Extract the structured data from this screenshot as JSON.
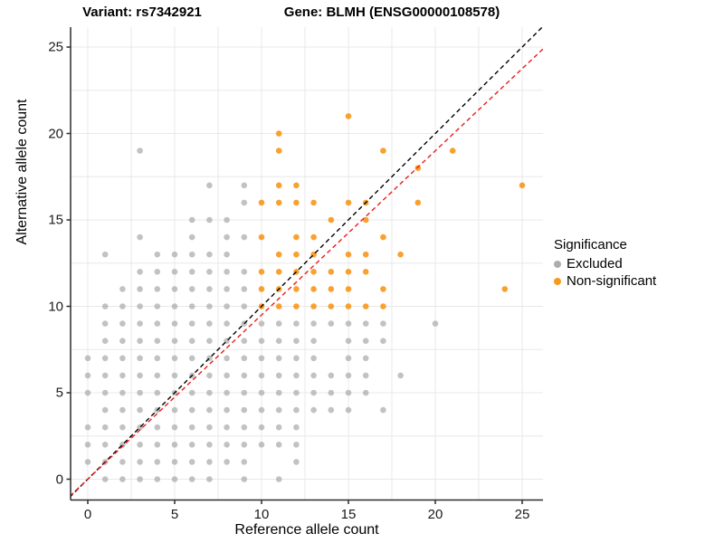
{
  "titles": {
    "variant": "Variant: rs7342921",
    "gene": "Gene: BLMH (ENSG00000108578)"
  },
  "legend": {
    "title": "Significance",
    "items": [
      {
        "label": "Excluded",
        "color": "#ADADAD"
      },
      {
        "label": "Non-significant",
        "color": "#F8991D"
      }
    ]
  },
  "chart_data": {
    "type": "scatter",
    "title": "Variant: rs7342921 | Gene: BLMH (ENSG00000108578)",
    "xlabel": "Reference allele count",
    "ylabel": "Alternative allele count",
    "xlim": [
      -1,
      26.2
    ],
    "ylim": [
      -1.2,
      26.2
    ],
    "x_ticks": [
      0,
      5,
      10,
      15,
      20,
      25
    ],
    "y_ticks": [
      0,
      5,
      10,
      15,
      20,
      25
    ],
    "grid": "on",
    "grid_interval": 2.5,
    "legend_position": "right",
    "grid_color": "#E8E8E8",
    "axis_color": "#2b2b2b",
    "lines": [
      {
        "name": "identity",
        "slope": 1,
        "intercept": 0,
        "color": "#000000",
        "style": "dashed"
      },
      {
        "name": "fit",
        "slope": 0.95,
        "intercept": 0,
        "color": "#EC1C1C",
        "style": "dashed"
      }
    ],
    "series": [
      {
        "name": "Excluded",
        "color": "#ADADAD",
        "opacity": 0.75,
        "points": [
          [
            1,
            0
          ],
          [
            2,
            0
          ],
          [
            3,
            0
          ],
          [
            4,
            0
          ],
          [
            5,
            0
          ],
          [
            6,
            0
          ],
          [
            7,
            0
          ],
          [
            9,
            0
          ],
          [
            11,
            0
          ],
          [
            0,
            1
          ],
          [
            1,
            1
          ],
          [
            2,
            1
          ],
          [
            3,
            1
          ],
          [
            4,
            1
          ],
          [
            5,
            1
          ],
          [
            6,
            1
          ],
          [
            7,
            1
          ],
          [
            8,
            1
          ],
          [
            9,
            1
          ],
          [
            12,
            1
          ],
          [
            0,
            2
          ],
          [
            1,
            2
          ],
          [
            2,
            2
          ],
          [
            3,
            2
          ],
          [
            4,
            2
          ],
          [
            5,
            2
          ],
          [
            6,
            2
          ],
          [
            7,
            2
          ],
          [
            8,
            2
          ],
          [
            9,
            2
          ],
          [
            10,
            2
          ],
          [
            11,
            2
          ],
          [
            12,
            2
          ],
          [
            0,
            3
          ],
          [
            1,
            3
          ],
          [
            2,
            3
          ],
          [
            3,
            3
          ],
          [
            4,
            3
          ],
          [
            5,
            3
          ],
          [
            6,
            3
          ],
          [
            7,
            3
          ],
          [
            8,
            3
          ],
          [
            9,
            3
          ],
          [
            10,
            3
          ],
          [
            11,
            3
          ],
          [
            12,
            3
          ],
          [
            1,
            4
          ],
          [
            2,
            4
          ],
          [
            3,
            4
          ],
          [
            4,
            4
          ],
          [
            5,
            4
          ],
          [
            6,
            4
          ],
          [
            7,
            4
          ],
          [
            8,
            4
          ],
          [
            9,
            4
          ],
          [
            10,
            4
          ],
          [
            11,
            4
          ],
          [
            12,
            4
          ],
          [
            13,
            4
          ],
          [
            14,
            4
          ],
          [
            15,
            4
          ],
          [
            17,
            4
          ],
          [
            0,
            5
          ],
          [
            1,
            5
          ],
          [
            2,
            5
          ],
          [
            3,
            5
          ],
          [
            4,
            5
          ],
          [
            5,
            5
          ],
          [
            6,
            5
          ],
          [
            7,
            5
          ],
          [
            8,
            5
          ],
          [
            9,
            5
          ],
          [
            10,
            5
          ],
          [
            11,
            5
          ],
          [
            12,
            5
          ],
          [
            13,
            5
          ],
          [
            14,
            5
          ],
          [
            15,
            5
          ],
          [
            16,
            5
          ],
          [
            0,
            6
          ],
          [
            1,
            6
          ],
          [
            2,
            6
          ],
          [
            3,
            6
          ],
          [
            4,
            6
          ],
          [
            5,
            6
          ],
          [
            6,
            6
          ],
          [
            7,
            6
          ],
          [
            8,
            6
          ],
          [
            9,
            6
          ],
          [
            10,
            6
          ],
          [
            11,
            6
          ],
          [
            12,
            6
          ],
          [
            13,
            6
          ],
          [
            14,
            6
          ],
          [
            15,
            6
          ],
          [
            16,
            6
          ],
          [
            18,
            6
          ],
          [
            0,
            7
          ],
          [
            1,
            7
          ],
          [
            2,
            7
          ],
          [
            3,
            7
          ],
          [
            4,
            7
          ],
          [
            5,
            7
          ],
          [
            6,
            7
          ],
          [
            7,
            7
          ],
          [
            8,
            7
          ],
          [
            9,
            7
          ],
          [
            10,
            7
          ],
          [
            11,
            7
          ],
          [
            12,
            7
          ],
          [
            13,
            7
          ],
          [
            15,
            7
          ],
          [
            16,
            7
          ],
          [
            1,
            8
          ],
          [
            2,
            8
          ],
          [
            3,
            8
          ],
          [
            4,
            8
          ],
          [
            5,
            8
          ],
          [
            6,
            8
          ],
          [
            7,
            8
          ],
          [
            8,
            8
          ],
          [
            9,
            8
          ],
          [
            10,
            8
          ],
          [
            11,
            8
          ],
          [
            12,
            8
          ],
          [
            13,
            8
          ],
          [
            15,
            8
          ],
          [
            16,
            8
          ],
          [
            17,
            8
          ],
          [
            1,
            9
          ],
          [
            2,
            9
          ],
          [
            3,
            9
          ],
          [
            4,
            9
          ],
          [
            5,
            9
          ],
          [
            6,
            9
          ],
          [
            7,
            9
          ],
          [
            8,
            9
          ],
          [
            9,
            9
          ],
          [
            10,
            9
          ],
          [
            11,
            9
          ],
          [
            12,
            9
          ],
          [
            13,
            9
          ],
          [
            14,
            9
          ],
          [
            15,
            9
          ],
          [
            16,
            9
          ],
          [
            17,
            9
          ],
          [
            20,
            9
          ],
          [
            1,
            10
          ],
          [
            2,
            10
          ],
          [
            3,
            10
          ],
          [
            4,
            10
          ],
          [
            5,
            10
          ],
          [
            6,
            10
          ],
          [
            7,
            10
          ],
          [
            8,
            10
          ],
          [
            9,
            10
          ],
          [
            2,
            11
          ],
          [
            3,
            11
          ],
          [
            4,
            11
          ],
          [
            5,
            11
          ],
          [
            6,
            11
          ],
          [
            7,
            11
          ],
          [
            8,
            11
          ],
          [
            9,
            11
          ],
          [
            3,
            12
          ],
          [
            4,
            12
          ],
          [
            5,
            12
          ],
          [
            6,
            12
          ],
          [
            7,
            12
          ],
          [
            8,
            12
          ],
          [
            9,
            12
          ],
          [
            1,
            13
          ],
          [
            4,
            13
          ],
          [
            5,
            13
          ],
          [
            6,
            13
          ],
          [
            7,
            13
          ],
          [
            8,
            13
          ],
          [
            3,
            14
          ],
          [
            6,
            14
          ],
          [
            8,
            14
          ],
          [
            9,
            14
          ],
          [
            6,
            15
          ],
          [
            7,
            15
          ],
          [
            8,
            15
          ],
          [
            9,
            16
          ],
          [
            7,
            17
          ],
          [
            9,
            17
          ],
          [
            3,
            19
          ]
        ]
      },
      {
        "name": "Non-significant",
        "color": "#F8991D",
        "opacity": 0.92,
        "points": [
          [
            10,
            10
          ],
          [
            11,
            10
          ],
          [
            12,
            10
          ],
          [
            13,
            10
          ],
          [
            14,
            10
          ],
          [
            15,
            10
          ],
          [
            16,
            10
          ],
          [
            17,
            10
          ],
          [
            10,
            11
          ],
          [
            11,
            11
          ],
          [
            12,
            11
          ],
          [
            13,
            11
          ],
          [
            14,
            11
          ],
          [
            15,
            11
          ],
          [
            17,
            11
          ],
          [
            24,
            11
          ],
          [
            10,
            12
          ],
          [
            11,
            12
          ],
          [
            12,
            12
          ],
          [
            13,
            12
          ],
          [
            14,
            12
          ],
          [
            15,
            12
          ],
          [
            16,
            12
          ],
          [
            11,
            13
          ],
          [
            12,
            13
          ],
          [
            13,
            13
          ],
          [
            15,
            13
          ],
          [
            16,
            13
          ],
          [
            18,
            13
          ],
          [
            10,
            14
          ],
          [
            12,
            14
          ],
          [
            13,
            14
          ],
          [
            17,
            14
          ],
          [
            14,
            15
          ],
          [
            16,
            15
          ],
          [
            10,
            16
          ],
          [
            11,
            16
          ],
          [
            12,
            16
          ],
          [
            13,
            16
          ],
          [
            15,
            16
          ],
          [
            16,
            16
          ],
          [
            19,
            16
          ],
          [
            11,
            17
          ],
          [
            12,
            17
          ],
          [
            25,
            17
          ],
          [
            19,
            18
          ],
          [
            11,
            19
          ],
          [
            17,
            19
          ],
          [
            21,
            19
          ],
          [
            11,
            20
          ],
          [
            15,
            21
          ]
        ]
      }
    ]
  }
}
